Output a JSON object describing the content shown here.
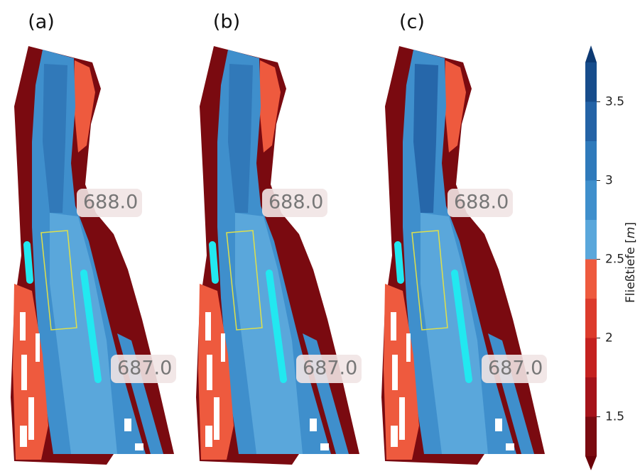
{
  "panels": [
    {
      "label": "(a)",
      "km_labels": [
        "688.0",
        "687.0"
      ]
    },
    {
      "label": "(b)",
      "km_labels": [
        "688.0",
        "687.0"
      ]
    },
    {
      "label": "(c)",
      "km_labels": [
        "688.0",
        "687.0"
      ]
    }
  ],
  "colorbar": {
    "label": "Fließtiefe [",
    "unit": "m",
    "label_end": "]",
    "lim": [
      1.25,
      3.75
    ],
    "ticks": [
      1.5,
      2,
      2.5,
      3,
      3.5
    ],
    "levels": [
      1.25,
      1.5,
      1.75,
      2,
      2.25,
      2.5,
      2.75,
      3,
      3.25,
      3.5,
      3.75
    ],
    "colors": [
      "#7a0a10",
      "#a5131a",
      "#c4211f",
      "#dc3b2c",
      "#ee5a3e",
      "#5aa7db",
      "#3f8fcc",
      "#2f7abb",
      "#2463a6",
      "#174d8c"
    ],
    "under_color": "#6a0008",
    "over_color": "#0d3a73"
  }
}
